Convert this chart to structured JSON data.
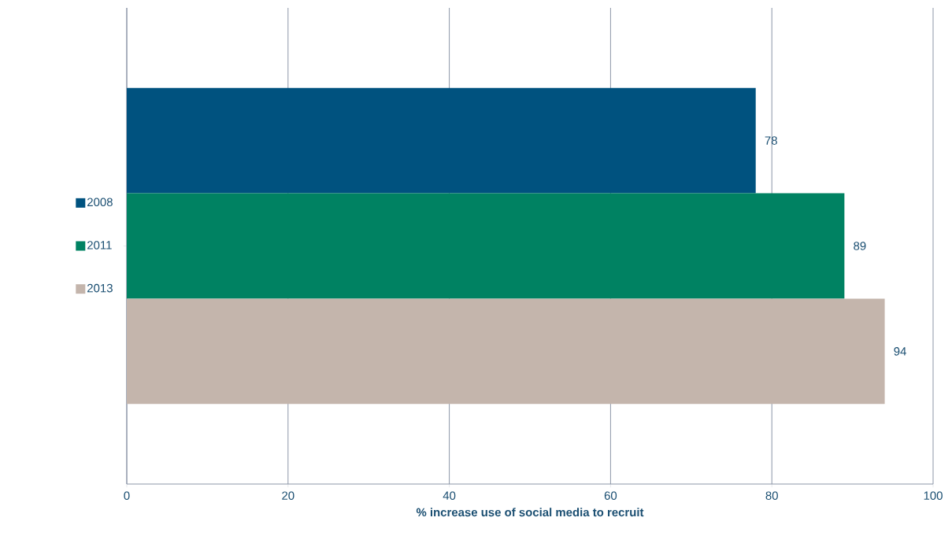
{
  "chart_data": {
    "type": "bar",
    "orientation": "horizontal",
    "categories": [
      null
    ],
    "series": [
      {
        "name": "2008",
        "color": "#00527f",
        "values": [
          78
        ]
      },
      {
        "name": "2011",
        "color": "#008262",
        "values": [
          89
        ]
      },
      {
        "name": "2013",
        "color": "#c4b5ac",
        "values": [
          94
        ]
      }
    ],
    "xlabel": "% increase use of social media to recruit",
    "xlim": [
      0,
      100
    ],
    "xticks": [
      0,
      20,
      40,
      60,
      80,
      100
    ],
    "grid": "x",
    "legend": "left",
    "data_labels": true
  }
}
